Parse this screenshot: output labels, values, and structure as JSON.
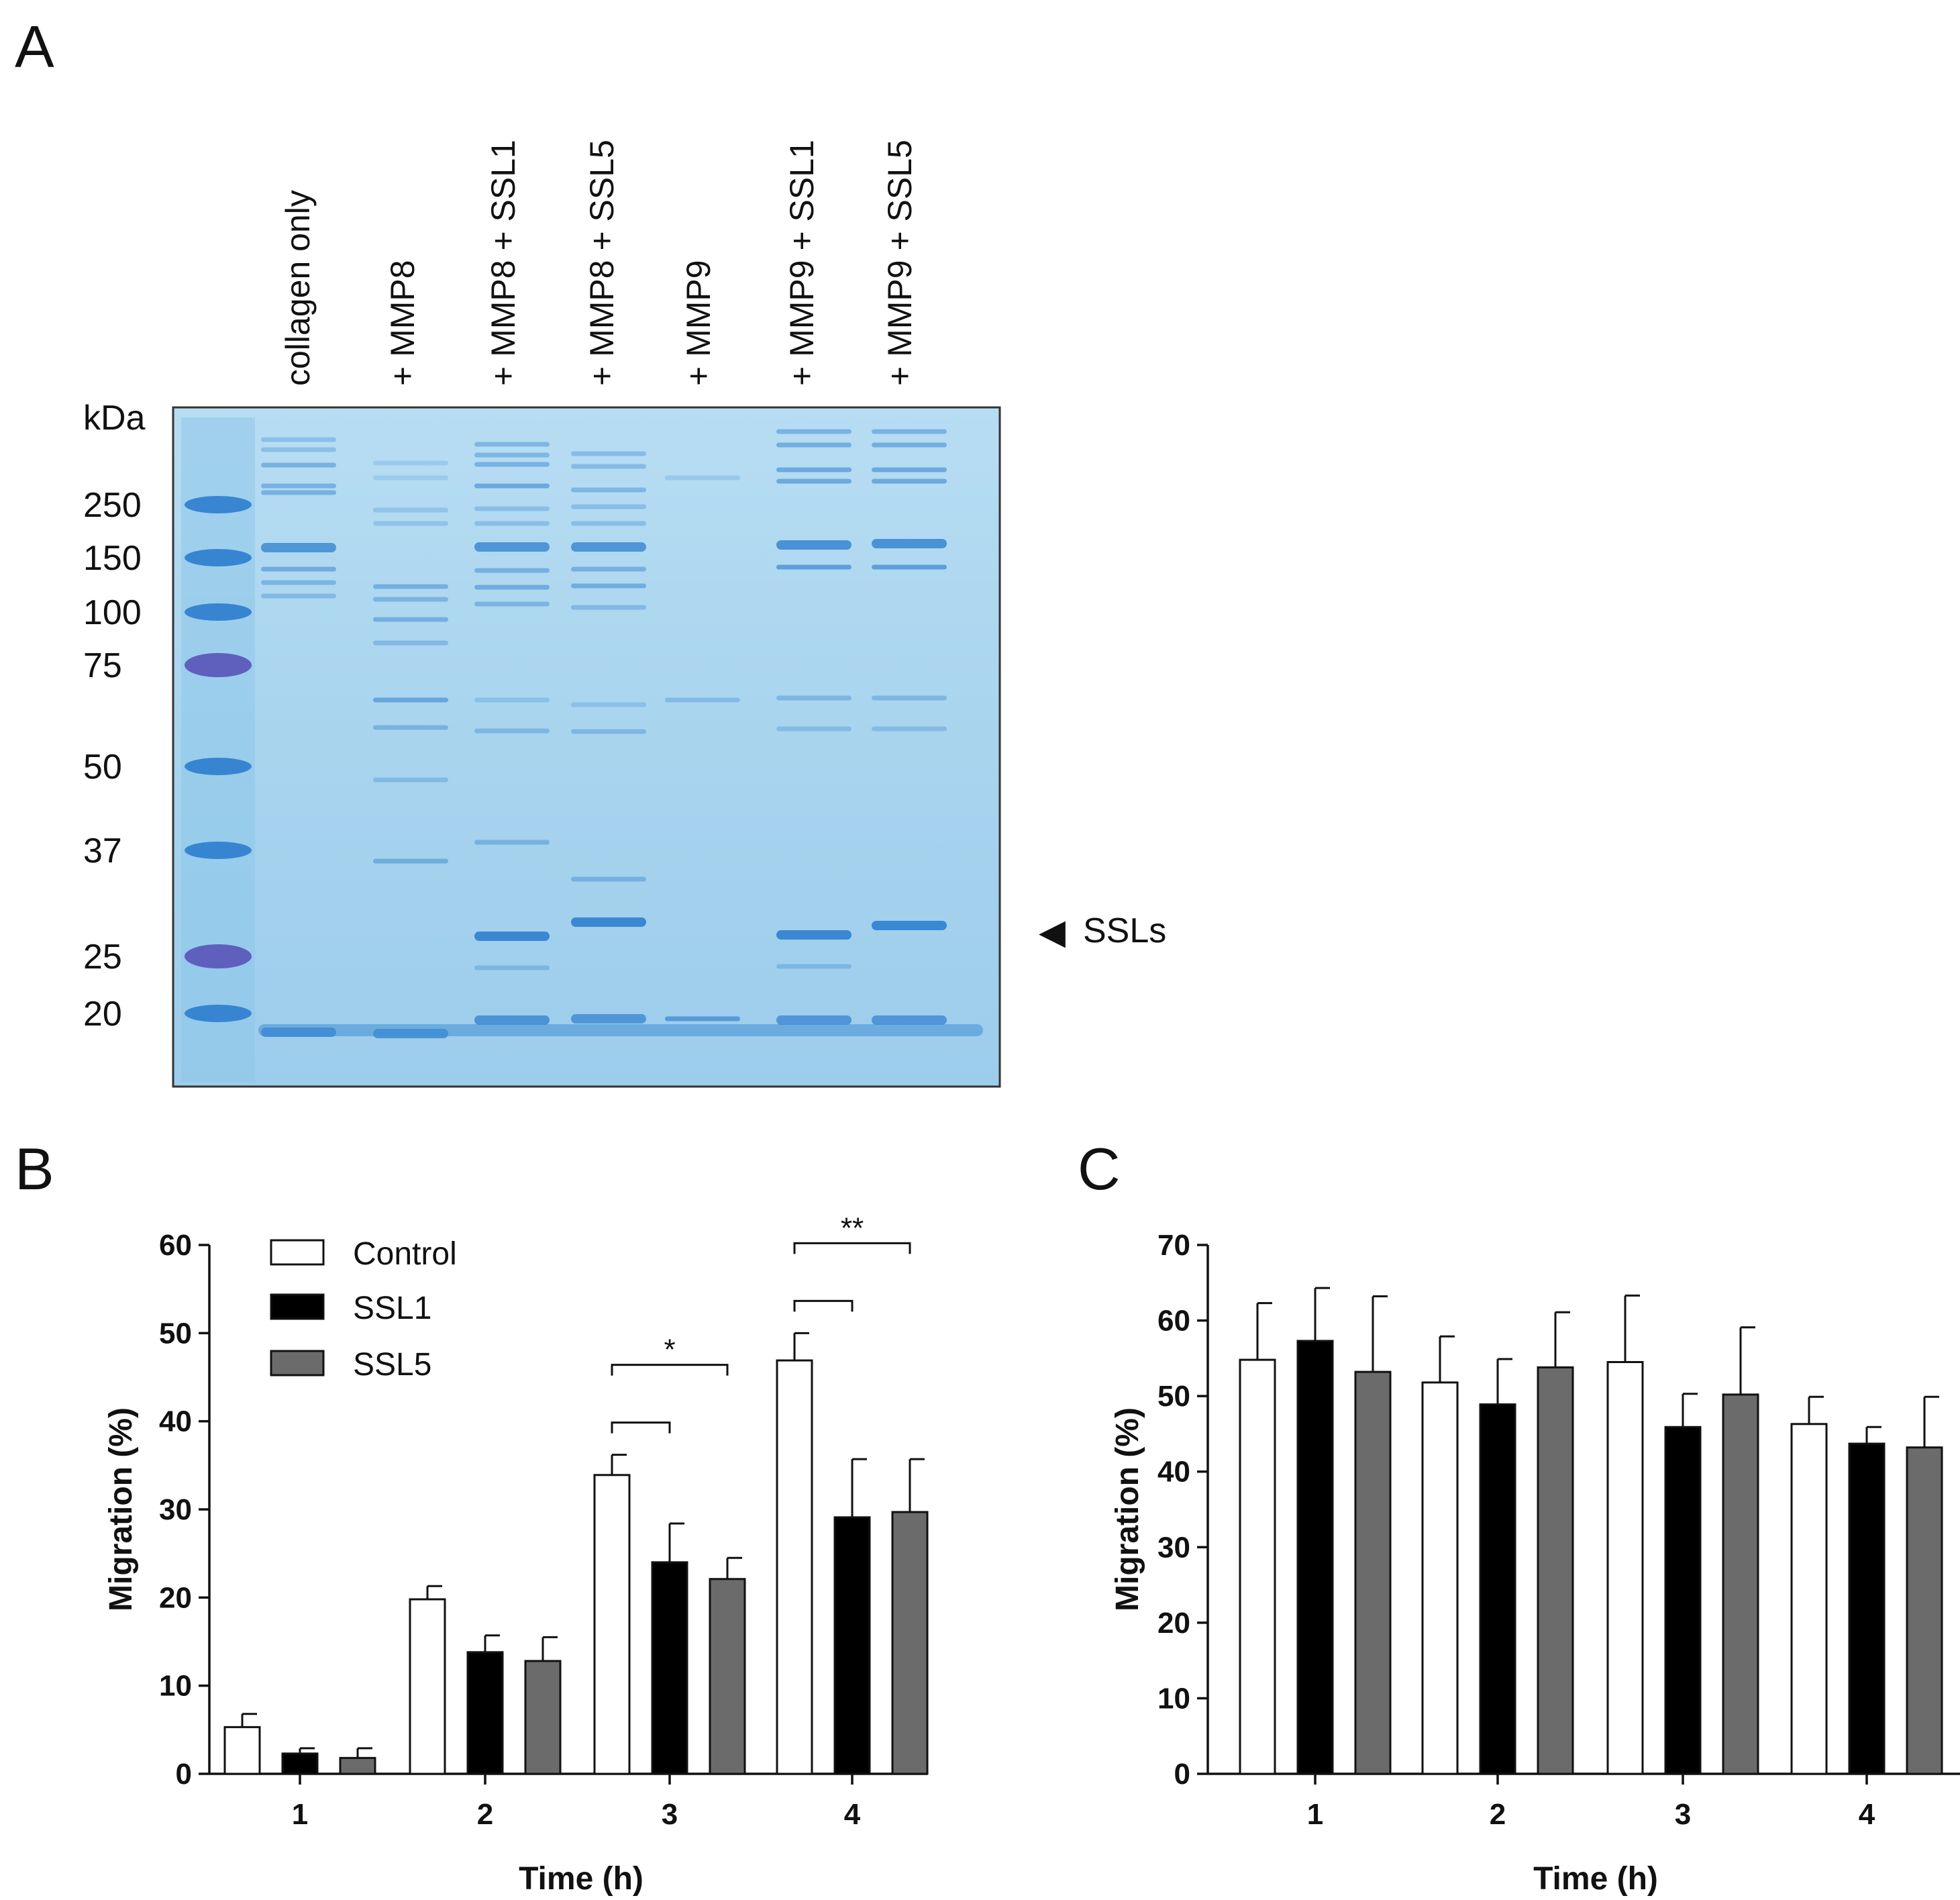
{
  "panel_a": {
    "letter": "A",
    "lanes": [
      "collagen only",
      "+ MMP8",
      "+ MMP8  + SSL1",
      "+ MMP8 + SSL5",
      "+ MMP9",
      "+ MMP9 + SSL1",
      "+ MMP9 + SSL5"
    ],
    "marker_unit": "kDa",
    "markers": [
      "250",
      "150",
      "100",
      "75",
      "50",
      "37",
      "25",
      "20"
    ],
    "arrow_symbol": "◀",
    "arrow_label": "SSLs",
    "gel_color": "#a9d5ef",
    "band_color": "#2f7fce",
    "marker_band_color": "#5a56b8"
  },
  "panel_b": {
    "letter": "B",
    "legend": [
      "Control",
      "SSL1",
      "SSL5"
    ],
    "significance": [
      "*",
      "**"
    ]
  },
  "panel_c": {
    "letter": "C"
  },
  "chart_data": [
    {
      "type": "bar",
      "panel": "B",
      "xlabel": "Time (h)",
      "ylabel": "Migration (%)",
      "ylim": [
        0,
        60
      ],
      "yticks": [
        "0",
        "10",
        "20",
        "30",
        "40",
        "50",
        "60"
      ],
      "categories": [
        "1",
        "2",
        "3",
        "4"
      ],
      "series": [
        {
          "name": "Control",
          "color": "#ffffff",
          "values": [
            5.3,
            19.8,
            33.9,
            46.9
          ],
          "errors": [
            1.5,
            1.5,
            2.3,
            3.1
          ]
        },
        {
          "name": "SSL1",
          "color": "#000000",
          "values": [
            2.3,
            13.8,
            24.0,
            29.1
          ],
          "errors": [
            0.6,
            1.9,
            4.4,
            6.6
          ]
        },
        {
          "name": "SSL5",
          "color": "#6b6b6b",
          "values": [
            1.8,
            12.8,
            22.1,
            29.7
          ],
          "errors": [
            1.1,
            2.7,
            2.4,
            6.0
          ]
        }
      ],
      "brackets": [
        {
          "category": "3",
          "from": "Control",
          "to": "SSL1",
          "label": ""
        },
        {
          "category": "3",
          "from": "Control",
          "to": "SSL5",
          "label": "*"
        },
        {
          "category": "4",
          "from": "Control",
          "to": "SSL1",
          "label": ""
        },
        {
          "category": "4",
          "from": "Control",
          "to": "SSL5",
          "label": "**"
        }
      ]
    },
    {
      "type": "bar",
      "panel": "C",
      "xlabel": "Time (h)",
      "ylabel": "Migration (%)",
      "ylim": [
        0,
        70
      ],
      "yticks": [
        "0",
        "10",
        "20",
        "30",
        "40",
        "50",
        "60",
        "70"
      ],
      "categories": [
        "1",
        "2",
        "3",
        "4"
      ],
      "series": [
        {
          "name": "Control",
          "color": "#ffffff",
          "values": [
            54.8,
            51.8,
            54.5,
            46.3
          ],
          "errors": [
            7.5,
            6.1,
            8.8,
            3.6
          ]
        },
        {
          "name": "SSL1",
          "color": "#000000",
          "values": [
            57.3,
            48.9,
            45.9,
            43.7
          ],
          "errors": [
            7.0,
            6.0,
            4.4,
            2.2
          ]
        },
        {
          "name": "SSL5",
          "color": "#6b6b6b",
          "values": [
            53.2,
            53.8,
            50.2,
            43.2
          ],
          "errors": [
            10.0,
            7.3,
            8.9,
            6.7
          ]
        }
      ]
    }
  ]
}
